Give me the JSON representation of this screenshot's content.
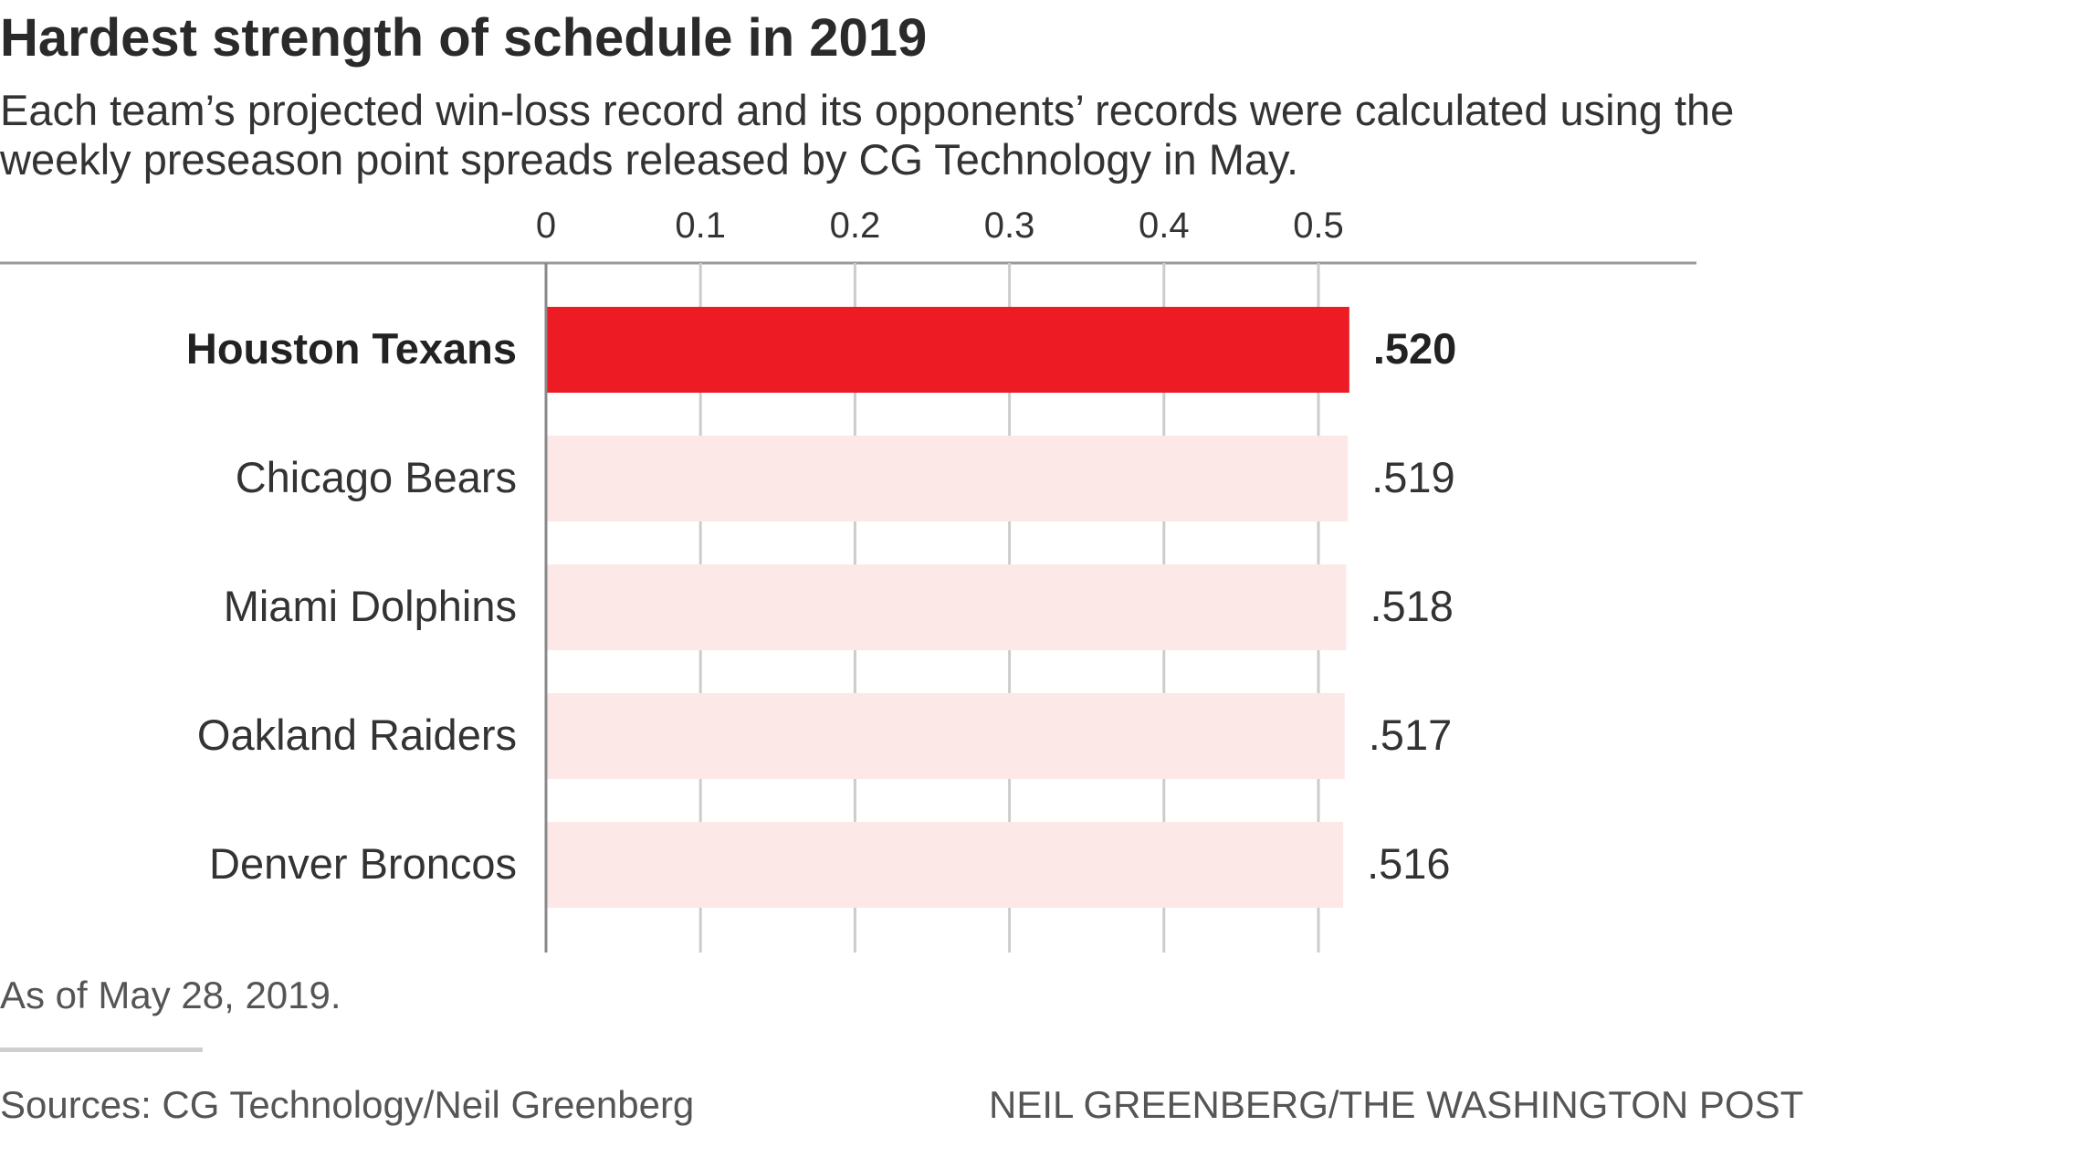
{
  "title": "Hardest strength of schedule in 2019",
  "subtitle": "Each team’s projected win-loss record and its opponents’ records were calculated using the weekly preseason point spreads released by CG Technology in May.",
  "note": "As of May 28, 2019.",
  "sources": "Sources: CG Technology/Neil Greenberg",
  "credit": "NEIL GREENBERG/THE WASHINGTON POST",
  "colors": {
    "highlight": "#ed1c24",
    "muted": "#fde8e8",
    "axis": "#999999",
    "grid": "#cccccc"
  },
  "chart_data": {
    "type": "bar",
    "orientation": "horizontal",
    "categories": [
      "Houston Texans",
      "Chicago Bears",
      "Miami Dolphins",
      "Oakland Raiders",
      "Denver Broncos"
    ],
    "values": [
      0.52,
      0.519,
      0.518,
      0.517,
      0.516
    ],
    "value_labels": [
      ".520",
      ".519",
      ".518",
      ".517",
      ".516"
    ],
    "highlighted": "Houston Texans",
    "xlim": [
      0,
      0.5
    ],
    "xticks": [
      0,
      0.1,
      0.2,
      0.3,
      0.4,
      0.5
    ],
    "xtick_labels": [
      "0",
      "0.1",
      "0.2",
      "0.3",
      "0.4",
      "0.5"
    ],
    "axis_position": "top",
    "grid": true,
    "legend": false
  }
}
